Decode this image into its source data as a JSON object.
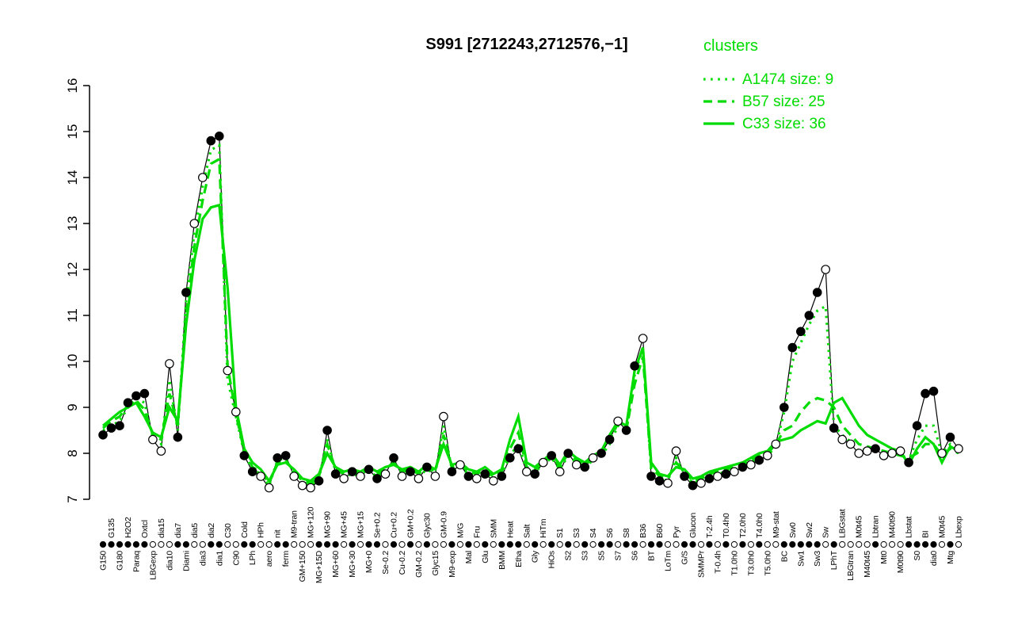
{
  "legend": {
    "title": "clusters",
    "color": "#00DC00",
    "entries": [
      {
        "label": "A1474 size: 9",
        "style": "dotted"
      },
      {
        "label": "B57 size: 25",
        "style": "dashed"
      },
      {
        "label": "C33 size: 36",
        "style": "solid"
      }
    ]
  },
  "chart_data": {
    "type": "line",
    "title": "S991 [2712243,2712576,−1]",
    "xlabel": "",
    "ylabel": "",
    "ylim": [
      7,
      16
    ],
    "yticks": [
      7,
      8,
      9,
      10,
      11,
      12,
      13,
      14,
      15,
      16
    ],
    "grid": false,
    "legend_position": "top-right",
    "marker_legend": {
      "filled": "filled-circle",
      "open": "open-circle"
    },
    "categories": [
      "G150",
      "G135",
      "G180",
      "H2O2",
      "Paraq",
      "Oxtcl",
      "LBGexp",
      "dia15",
      "dia10",
      "dia7",
      "Diami",
      "dia5",
      "dia3",
      "dia2",
      "dia1",
      "C30",
      "C90",
      "Cold",
      "LPh",
      "HPh",
      "aero",
      "nit",
      "ferm",
      "M9-tran",
      "GM+150",
      "MG+120",
      "MG+15D",
      "MG+90",
      "MG+60",
      "MG+45",
      "MG+30",
      "MG+15",
      "MG+0",
      "Se+0.2",
      "Se-0.2",
      "Cu+0.2",
      "Cu-0.2",
      "GM+0.2",
      "GM-0.2",
      "Glyc30",
      "Glyc15",
      "GM-0.9",
      "M9-exp",
      "M/G",
      "Mal",
      "Fru",
      "Glu",
      "SMM",
      "BMM",
      "Heat",
      "Etha",
      "Salt",
      "Gly",
      "HiTm",
      "HiOs",
      "S1",
      "S2",
      "S3",
      "S3",
      "S4",
      "S5",
      "S6",
      "S7",
      "S8",
      "S6",
      "B36",
      "BT",
      "B60",
      "LoTm",
      "Pyr",
      "G/S",
      "Glucon",
      "SMMPr",
      "T-2.4h",
      "T-0.4h",
      "T0.4h0",
      "T1.0h0",
      "T2.0h0",
      "T3.0h0",
      "T4.0h0",
      "T5.0h0",
      "M9-stat",
      "BC",
      "Sw0",
      "Sw1",
      "Sw2",
      "Sw3",
      "Sw",
      "LPhT",
      "LBGstat",
      "LBGtran",
      "M0t45",
      "M40t45",
      "Lbtran",
      "Mt0",
      "M40t90",
      "M0t90",
      "Lbstat",
      "S0",
      "BI",
      "dia0",
      "M0t45",
      "Mtg",
      "Lbexp"
    ],
    "marker_filled": [
      1,
      1,
      1,
      1,
      1,
      1,
      0,
      0,
      0,
      1,
      1,
      0,
      0,
      1,
      1,
      0,
      0,
      1,
      1,
      0,
      0,
      1,
      1,
      0,
      0,
      0,
      1,
      1,
      1,
      0,
      1,
      0,
      1,
      1,
      0,
      1,
      0,
      1,
      0,
      1,
      0,
      0,
      1,
      0,
      1,
      0,
      1,
      0,
      1,
      1,
      1,
      0,
      1,
      0,
      1,
      0,
      1,
      0,
      1,
      0,
      1,
      1,
      0,
      1,
      1,
      0,
      1,
      1,
      0,
      0,
      1,
      1,
      0,
      1,
      0,
      1,
      0,
      1,
      0,
      1,
      0,
      0,
      1,
      1,
      1,
      1,
      1,
      0,
      1,
      0,
      0,
      0,
      0,
      1,
      0,
      0,
      0,
      1,
      1,
      1,
      1,
      0,
      1,
      0
    ],
    "series": [
      {
        "name": "S991",
        "color": "#000000",
        "style": "solid",
        "width": 1.2,
        "markers": true,
        "values": [
          8.4,
          8.55,
          8.6,
          9.1,
          9.25,
          9.3,
          8.3,
          8.05,
          9.95,
          8.35,
          11.5,
          13.0,
          14.0,
          14.8,
          14.9,
          9.8,
          8.9,
          7.95,
          7.6,
          7.5,
          7.25,
          7.9,
          7.95,
          7.5,
          7.3,
          7.25,
          7.4,
          8.5,
          7.55,
          7.45,
          7.6,
          7.5,
          7.65,
          7.45,
          7.55,
          7.9,
          7.5,
          7.6,
          7.45,
          7.7,
          7.5,
          8.8,
          7.6,
          7.75,
          7.5,
          7.45,
          7.55,
          7.4,
          7.5,
          7.9,
          8.1,
          7.6,
          7.55,
          7.8,
          7.95,
          7.6,
          8.0,
          7.75,
          7.7,
          7.9,
          8.0,
          8.3,
          8.7,
          8.5,
          9.9,
          10.5,
          7.5,
          7.4,
          7.35,
          8.05,
          7.5,
          7.3,
          7.35,
          7.45,
          7.5,
          7.55,
          7.6,
          7.7,
          7.75,
          7.85,
          7.95,
          8.2,
          9.0,
          10.3,
          10.65,
          11.0,
          11.5,
          12.0,
          8.55,
          8.3,
          8.2,
          8.0,
          8.05,
          8.1,
          7.95,
          8.0,
          8.05,
          7.8,
          8.6,
          9.3,
          9.35,
          8.0,
          8.35,
          8.1
        ]
      },
      {
        "name": "A1474 size: 9",
        "color": "#00DC00",
        "style": "dotted",
        "width": 3.2,
        "markers": false,
        "values": [
          8.5,
          8.6,
          8.7,
          9.0,
          9.2,
          9.1,
          8.35,
          8.2,
          9.6,
          8.5,
          11.3,
          12.8,
          13.8,
          14.6,
          14.7,
          9.6,
          8.8,
          8.0,
          7.65,
          7.55,
          7.3,
          7.85,
          7.9,
          7.55,
          7.35,
          7.3,
          7.45,
          8.3,
          7.6,
          7.5,
          7.55,
          7.5,
          7.6,
          7.5,
          7.6,
          7.85,
          7.55,
          7.6,
          7.5,
          7.65,
          7.55,
          8.6,
          7.65,
          7.7,
          7.55,
          7.5,
          7.6,
          7.45,
          7.55,
          7.95,
          8.2,
          7.65,
          7.6,
          7.75,
          7.9,
          7.65,
          7.95,
          7.8,
          7.7,
          7.85,
          7.95,
          8.2,
          8.6,
          8.45,
          9.7,
          10.3,
          7.6,
          7.45,
          7.4,
          7.9,
          7.55,
          7.35,
          7.4,
          7.5,
          7.55,
          7.6,
          7.65,
          7.7,
          7.8,
          7.9,
          7.95,
          8.15,
          8.9,
          10.0,
          10.4,
          10.8,
          11.1,
          11.2,
          8.6,
          8.4,
          8.25,
          8.05,
          8.1,
          8.1,
          8.0,
          8.05,
          8.0,
          7.85,
          8.3,
          8.6,
          8.6,
          8.0,
          8.2,
          8.05
        ]
      },
      {
        "name": "B57 size: 25",
        "color": "#00DC00",
        "style": "dashed",
        "width": 3.2,
        "markers": false,
        "values": [
          8.55,
          8.7,
          8.8,
          9.05,
          9.15,
          8.95,
          8.4,
          8.3,
          9.3,
          8.6,
          11.0,
          12.5,
          13.5,
          14.3,
          14.4,
          9.9,
          8.85,
          8.05,
          7.7,
          7.6,
          7.35,
          7.8,
          7.85,
          7.6,
          7.4,
          7.35,
          7.5,
          8.2,
          7.65,
          7.55,
          7.6,
          7.55,
          7.65,
          7.55,
          7.65,
          7.8,
          7.6,
          7.65,
          7.55,
          7.7,
          7.6,
          8.4,
          7.7,
          7.75,
          7.6,
          7.55,
          7.65,
          7.5,
          7.6,
          8.1,
          8.45,
          7.7,
          7.65,
          7.8,
          7.95,
          7.7,
          8.0,
          7.85,
          7.75,
          7.9,
          8.0,
          8.3,
          8.65,
          8.5,
          9.5,
          10.1,
          7.7,
          7.5,
          7.45,
          7.8,
          7.6,
          7.4,
          7.45,
          7.55,
          7.6,
          7.65,
          7.7,
          7.75,
          7.85,
          7.95,
          8.0,
          8.2,
          8.5,
          8.6,
          8.9,
          9.1,
          9.2,
          9.15,
          9.0,
          8.6,
          8.4,
          8.2,
          8.15,
          8.1,
          8.05,
          8.0,
          7.95,
          7.9,
          8.0,
          8.2,
          8.2,
          7.95,
          8.1,
          8.0
        ]
      },
      {
        "name": "C33 size: 36",
        "color": "#00DC00",
        "style": "solid",
        "width": 3.2,
        "markers": false,
        "values": [
          8.6,
          8.75,
          8.9,
          9.0,
          9.1,
          8.8,
          8.45,
          8.35,
          9.0,
          8.7,
          10.8,
          12.2,
          13.1,
          13.35,
          13.4,
          11.6,
          9.0,
          8.1,
          7.8,
          7.65,
          7.4,
          7.75,
          7.8,
          7.65,
          7.45,
          7.4,
          7.55,
          8.0,
          7.7,
          7.6,
          7.65,
          7.6,
          7.7,
          7.6,
          7.7,
          7.75,
          7.65,
          7.7,
          7.6,
          7.75,
          7.65,
          8.2,
          7.75,
          7.8,
          7.65,
          7.6,
          7.7,
          7.55,
          7.65,
          8.3,
          8.8,
          7.8,
          7.7,
          7.85,
          8.0,
          7.75,
          8.05,
          7.9,
          7.8,
          7.95,
          8.05,
          8.4,
          8.7,
          8.6,
          9.8,
          10.3,
          7.8,
          7.55,
          7.5,
          7.7,
          7.65,
          7.45,
          7.5,
          7.6,
          7.65,
          7.7,
          7.75,
          7.8,
          7.9,
          8.0,
          8.05,
          8.25,
          8.3,
          8.35,
          8.5,
          8.6,
          8.7,
          8.65,
          9.1,
          9.2,
          8.9,
          8.6,
          8.4,
          8.3,
          8.2,
          8.1,
          8.05,
          7.75,
          8.1,
          8.35,
          8.2,
          7.8,
          8.15,
          8.05
        ]
      }
    ]
  }
}
